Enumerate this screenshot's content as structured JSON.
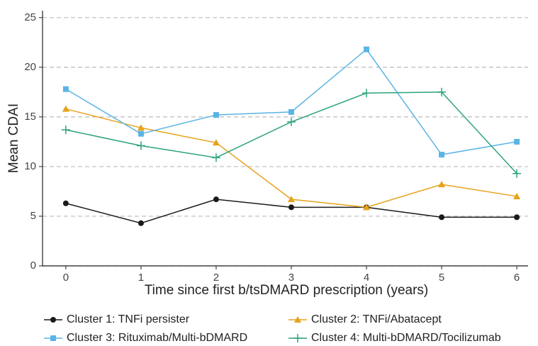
{
  "chart_data": {
    "type": "line",
    "x_label": "Time since first b/tsDMARD prescription (years)",
    "y_label": "Mean CDAI",
    "x": [
      0,
      1,
      2,
      3,
      4,
      5,
      6
    ],
    "series": [
      {
        "name": "Cluster 1: TNFi persister",
        "color": "#1a1a1a",
        "marker": "circle",
        "values": [
          6.3,
          4.3,
          6.7,
          5.9,
          5.9,
          4.9,
          4.9
        ]
      },
      {
        "name": "Cluster 2: TNFi/Abatacept",
        "color": "#e6a21a",
        "marker": "triangle",
        "values": [
          15.8,
          13.9,
          12.4,
          6.7,
          5.9,
          8.2,
          7.0
        ]
      },
      {
        "name": "Cluster 3: Rituximab/Multi-bDMARD",
        "color": "#5ab4e5",
        "marker": "square",
        "values": [
          17.8,
          13.3,
          15.2,
          15.5,
          21.8,
          11.2,
          12.5
        ]
      },
      {
        "name": "Cluster 4: Multi-bDMARD/Tocilizumab",
        "color": "#2ba37a",
        "marker": "plus",
        "values": [
          13.7,
          12.1,
          10.9,
          14.5,
          17.4,
          17.5,
          9.3
        ]
      }
    ],
    "xlim": [
      -0.31,
      6.15
    ],
    "xticks": [
      0,
      1,
      2,
      3,
      4,
      5,
      6
    ],
    "ylim": [
      0,
      25.7
    ],
    "yticks": [
      0,
      5,
      10,
      15,
      20,
      25
    ],
    "grid": true,
    "legend_position": "bottom"
  }
}
